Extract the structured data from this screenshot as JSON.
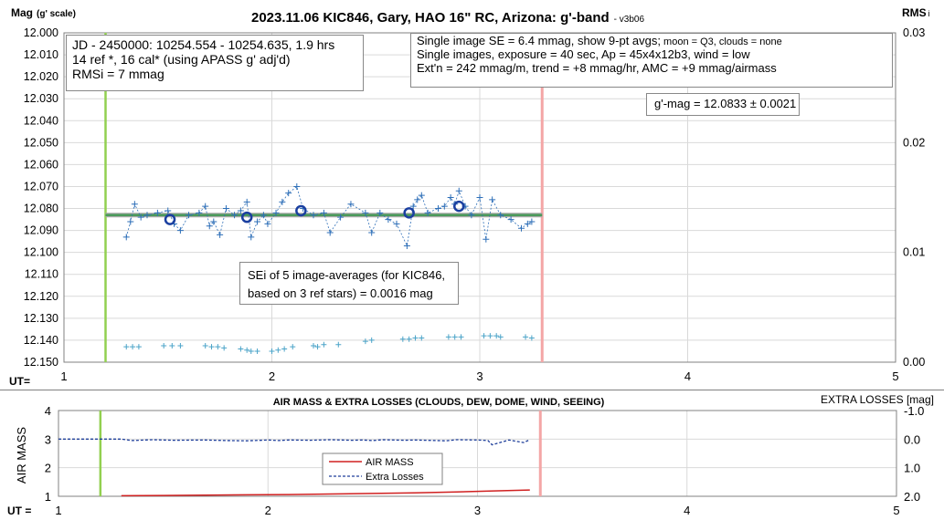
{
  "chart_data": [
    {
      "type": "scatter",
      "title": "2023.11.06 KIC846, Gary, HAO 16\" RC, Arizona: g'-band",
      "title_suffix": "- v3b06",
      "ylabel_main": "Mag",
      "ylabel_sub": "(g' scale)",
      "y2label_main": "RMS",
      "y2label_sub": "i",
      "xlabel": "UT=",
      "xlim": [
        1,
        5
      ],
      "ylim": [
        12.15,
        12.0
      ],
      "y2lim": [
        0.0,
        0.03
      ],
      "xticks": [
        "1",
        "2",
        "3",
        "4",
        "5"
      ],
      "yticks": [
        "12.000",
        "12.010",
        "12.020",
        "12.030",
        "12.040",
        "12.050",
        "12.060",
        "12.070",
        "12.080",
        "12.090",
        "12.100",
        "12.110",
        "12.120",
        "12.130",
        "12.140",
        "12.150"
      ],
      "y2ticks": [
        "0.03",
        "0.02",
        "0.01",
        "0.00"
      ],
      "green_marker_x": 1.2,
      "red_marker_x": 3.3,
      "fit_line": {
        "x": [
          1.2,
          3.3
        ],
        "y": [
          12.083,
          12.083
        ],
        "color": "#4a9a5a"
      },
      "gray_line": {
        "x": [
          1.2,
          3.3
        ],
        "y": [
          12.083,
          12.083
        ],
        "color": "#a8a8a8"
      },
      "colors": {
        "series": "#2e6fb8",
        "rms": "#4aa3c8",
        "circles": "#1a3fa0",
        "green": "#92d050",
        "red": "#f4a6a6"
      },
      "series": [
        {
          "kind": "single_images",
          "x": [
            1.3,
            1.32,
            1.34,
            1.37,
            1.4,
            1.45,
            1.5,
            1.53,
            1.56,
            1.6,
            1.65,
            1.68,
            1.7,
            1.72,
            1.75,
            1.78,
            1.82,
            1.85,
            1.88,
            1.9,
            1.93,
            1.96,
            1.98,
            2.02,
            2.05,
            2.08,
            2.12,
            2.15,
            2.2,
            2.25,
            2.28,
            2.33,
            2.38,
            2.45,
            2.48,
            2.52,
            2.56,
            2.6,
            2.65,
            2.68,
            2.7,
            2.72,
            2.75,
            2.8,
            2.83,
            2.86,
            2.88,
            2.9,
            2.93,
            2.96,
            3.0,
            3.03,
            3.06,
            3.1,
            3.15,
            3.2,
            3.23,
            3.25
          ],
          "y": [
            12.093,
            12.086,
            12.078,
            12.084,
            12.083,
            12.082,
            12.081,
            12.087,
            12.09,
            12.083,
            12.082,
            12.079,
            12.088,
            12.086,
            12.092,
            12.08,
            12.083,
            12.081,
            12.077,
            12.093,
            12.086,
            12.083,
            12.087,
            12.082,
            12.077,
            12.073,
            12.07,
            12.08,
            12.083,
            12.082,
            12.091,
            12.084,
            12.078,
            12.082,
            12.091,
            12.082,
            12.085,
            12.087,
            12.097,
            12.079,
            12.076,
            12.074,
            12.082,
            12.08,
            12.079,
            12.075,
            12.078,
            12.072,
            12.079,
            12.083,
            12.075,
            12.094,
            12.076,
            12.083,
            12.085,
            12.089,
            12.087,
            12.086
          ]
        },
        {
          "kind": "rms",
          "x": [
            1.3,
            1.33,
            1.36,
            1.48,
            1.52,
            1.56,
            1.68,
            1.71,
            1.74,
            1.77,
            1.85,
            1.88,
            1.9,
            1.93,
            2.0,
            2.03,
            2.06,
            2.1,
            2.2,
            2.22,
            2.25,
            2.32,
            2.45,
            2.48,
            2.63,
            2.66,
            2.69,
            2.72,
            2.85,
            2.88,
            2.91,
            3.02,
            3.05,
            3.08,
            3.1,
            3.22,
            3.25
          ],
          "y": [
            0.0014,
            0.0014,
            0.0014,
            0.0015,
            0.0015,
            0.0015,
            0.0015,
            0.0014,
            0.0014,
            0.0013,
            0.0012,
            0.0011,
            0.001,
            0.001,
            0.001,
            0.0011,
            0.0012,
            0.0014,
            0.0015,
            0.0014,
            0.0016,
            0.0016,
            0.0019,
            0.002,
            0.0021,
            0.0021,
            0.0022,
            0.0022,
            0.0023,
            0.0023,
            0.0023,
            0.0024,
            0.0024,
            0.0024,
            0.0023,
            0.0023,
            0.0022
          ]
        },
        {
          "kind": "averages",
          "x": [
            1.51,
            1.88,
            2.14,
            2.66,
            2.9
          ],
          "y": [
            12.085,
            12.084,
            12.081,
            12.082,
            12.079
          ]
        }
      ]
    },
    {
      "type": "line",
      "title": "AIR MASS & EXTRA LOSSES (CLOUDS, DEW, DOME, WIND, SEEING)",
      "ylabel": "AIR MASS",
      "y2label": "EXTRA LOSSES [mag]",
      "xlabel": "UT =",
      "xlim": [
        1,
        5
      ],
      "ylim": [
        1,
        4
      ],
      "y2lim": [
        2.0,
        -1.0
      ],
      "xticks": [
        "1",
        "2",
        "3",
        "4",
        "5"
      ],
      "yticks": [
        "4",
        "3",
        "2",
        "1"
      ],
      "y2ticks": [
        "-1.0",
        "0.0",
        "1.0",
        "2.0"
      ],
      "legend": [
        "AIR MASS",
        "Extra Losses"
      ],
      "legend_placement": "center",
      "series": [
        {
          "name": "AIR MASS",
          "color": "#d02020",
          "x": [
            1.3,
            1.5,
            1.7,
            1.9,
            2.1,
            2.3,
            2.5,
            2.7,
            2.9,
            3.1,
            3.25
          ],
          "y": [
            1.02,
            1.03,
            1.04,
            1.05,
            1.06,
            1.08,
            1.1,
            1.12,
            1.15,
            1.19,
            1.22
          ]
        },
        {
          "name": "Extra Losses",
          "color": "#1f3f9a",
          "x": [
            1.0,
            1.3,
            1.35,
            1.45,
            1.55,
            1.7,
            1.8,
            1.9,
            2.0,
            2.05,
            2.1,
            2.2,
            2.3,
            2.4,
            2.45,
            2.5,
            2.55,
            2.65,
            2.7,
            2.8,
            2.85,
            2.9,
            3.0,
            3.05,
            3.07,
            3.15,
            3.22,
            3.25
          ],
          "y": [
            0.0,
            0.0,
            0.05,
            0.02,
            0.04,
            0.03,
            0.05,
            0.06,
            0.03,
            0.05,
            0.03,
            0.04,
            0.02,
            0.04,
            0.03,
            0.05,
            0.02,
            0.04,
            0.03,
            0.05,
            0.06,
            0.02,
            0.03,
            0.05,
            0.2,
            0.03,
            0.12,
            0.02
          ]
        }
      ]
    }
  ],
  "annotations": {
    "box1": [
      "JD - 2450000: 10254.554 - 10254.635, 1.9 hrs",
      "14 ref *, 16 cal* (using APASS g' adj'd)",
      "RMSi = 7 mmag"
    ],
    "box2_line1_main": "Single image SE = 6.4 mmag, show  9-pt avgs;",
    "box2_line1_small": " moon = Q3, clouds = none",
    "box2_line2": "Single images, exposure = 40 sec, Ap = 45x4x12b3, wind = low",
    "box2_line3": "Ext'n = 242 mmag/m, trend = +8 mmag/hr, AMC = +9 mmag/airmass",
    "gmag": "g'-mag = 12.0833 ± 0.0021",
    "sei": [
      "SEi of 5 image-averages (for KIC846,",
      "based on 3 ref stars) = 0.0016 mag"
    ]
  }
}
